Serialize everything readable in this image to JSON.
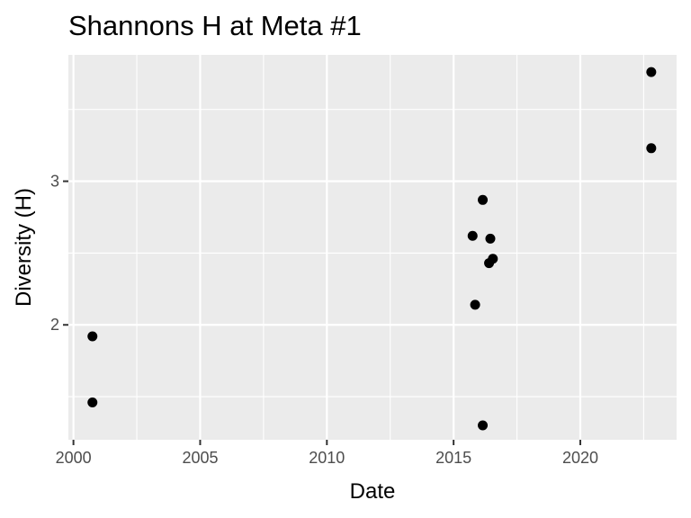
{
  "chart_data": {
    "type": "scatter",
    "title": "Shannons H at Meta #1",
    "xlabel": "Date",
    "ylabel": "Diversity (H)",
    "xlim": [
      1999.8,
      2023.8
    ],
    "ylim": [
      1.2,
      3.88
    ],
    "x_ticks": [
      2000,
      2005,
      2010,
      2015,
      2020
    ],
    "y_ticks": [
      2,
      3
    ],
    "grid": true,
    "legend": "none",
    "colors": {
      "panel": "#ebebeb",
      "grid": "#ffffff",
      "point": "#000000",
      "tick_text": "#4d4d4d"
    },
    "points": [
      {
        "x": 2000.75,
        "y": 1.92
      },
      {
        "x": 2000.75,
        "y": 1.46
      },
      {
        "x": 2015.75,
        "y": 2.62
      },
      {
        "x": 2015.85,
        "y": 2.14
      },
      {
        "x": 2016.15,
        "y": 2.87
      },
      {
        "x": 2016.4,
        "y": 2.43
      },
      {
        "x": 2016.45,
        "y": 2.6
      },
      {
        "x": 2016.55,
        "y": 2.46
      },
      {
        "x": 2016.15,
        "y": 1.3
      },
      {
        "x": 2022.8,
        "y": 3.76
      },
      {
        "x": 2022.8,
        "y": 3.23
      }
    ]
  }
}
